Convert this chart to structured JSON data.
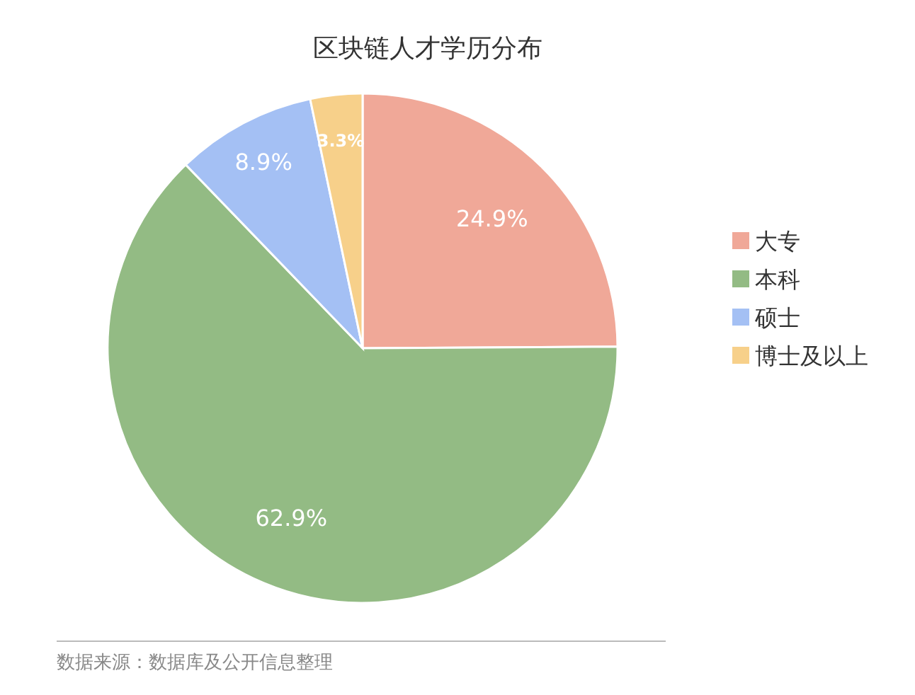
{
  "chart_data": {
    "type": "pie",
    "title": "区块链人才学历分布",
    "categories": [
      "大专",
      "本科",
      "硕士",
      "博士及以上"
    ],
    "values": [
      24.9,
      62.9,
      8.9,
      3.3
    ],
    "colors": [
      "#f0a898",
      "#93bb84",
      "#a4c0f4",
      "#f7d08a"
    ],
    "value_labels": [
      "24.9%",
      "62.9%",
      "8.9%",
      "3.3%"
    ],
    "legend": "right",
    "annotations": [
      "数据来源：数据库及公开信息整理"
    ]
  }
}
